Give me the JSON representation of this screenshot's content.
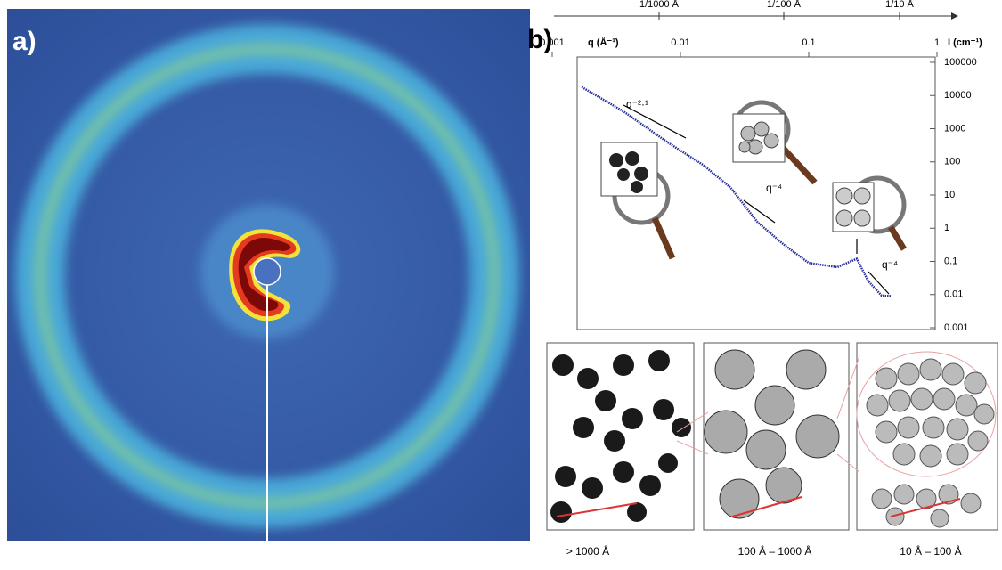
{
  "panel_labels": [
    "a)",
    "b)"
  ],
  "length_scale": [
    "1/1000 Å",
    "1/100 Å",
    "1/10 Å"
  ],
  "chart_data": {
    "type": "line",
    "x_label": "q (Å⁻¹)",
    "y_label": "I (cm⁻¹)",
    "x": [
      0.0017,
      0.0036,
      0.008,
      0.015,
      0.0245,
      0.04,
      0.064,
      0.1,
      0.167,
      0.237,
      0.29,
      0.37,
      0.44
    ],
    "series": [
      {
        "color": "#2a2f9a",
        "values": [
          18000,
          3300,
          380,
          81,
          17,
          1.5,
          0.32,
          0.09,
          0.067,
          0.12,
          0.026,
          0.0093,
          0.009
        ]
      }
    ],
    "xlim": [
      0.001,
      1
    ],
    "xticks": [
      0.001,
      0.01,
      0.1,
      1
    ],
    "log_x": true,
    "ylim": [
      0.001,
      100000
    ],
    "yticks": [
      100000,
      10000,
      1000,
      100,
      10,
      1,
      0.1,
      0.01,
      0.001
    ],
    "log_y": true,
    "annotations": [
      "q⁻²·¹",
      "q⁻⁴",
      "q⁻⁴"
    ]
  },
  "captions": [
    "> 1000 Å",
    "100 Å – 1000 Å",
    "10 Å – 100 Å"
  ]
}
